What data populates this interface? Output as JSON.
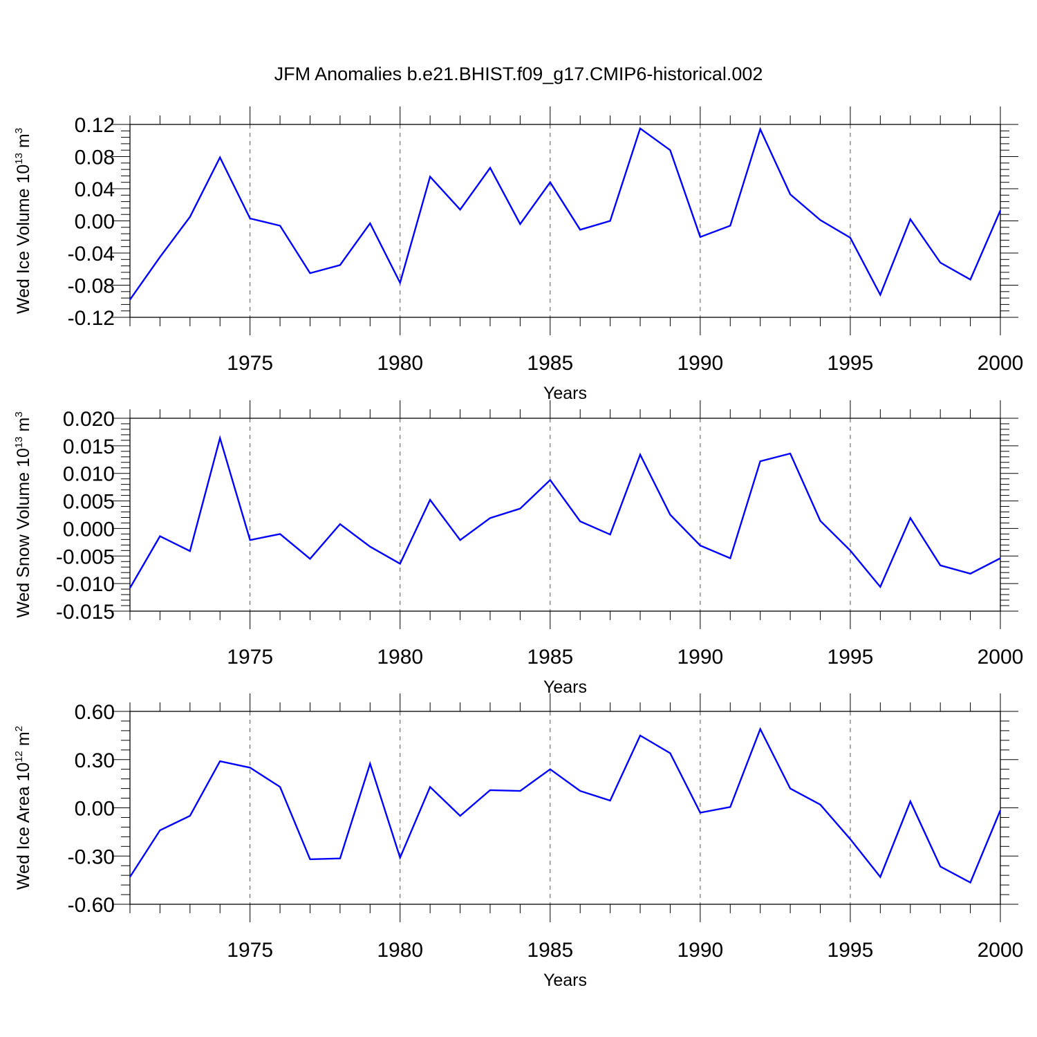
{
  "title": "JFM Anomalies b.e21.BHIST.f09_g17.CMIP6-historical.002",
  "chart_data": [
    {
      "type": "line",
      "title": "",
      "ylabel": "Wed Ice Volume 10",
      "ylabel_exp": "13",
      "ylabel_unit": "m",
      "ylabel_unit_exp": "3",
      "xlabel": "Years",
      "xlim": [
        1971,
        2000
      ],
      "ylim": [
        -0.12,
        0.12
      ],
      "xticks": [
        1975,
        1980,
        1985,
        1990,
        1995,
        2000
      ],
      "xtick_labels": [
        "1975",
        "1980",
        "1985",
        "1990",
        "1995",
        "2000"
      ],
      "yticks": [
        -0.12,
        -0.08,
        -0.04,
        0.0,
        0.04,
        0.08,
        0.12
      ],
      "ytick_labels": [
        "-0.12",
        "-0.08",
        "-0.04",
        "0.00",
        "0.04",
        "0.08",
        "0.12"
      ],
      "grid": "vertical dashed at major x ticks",
      "color": "#0000ff",
      "x": [
        1971,
        1972,
        1973,
        1974,
        1975,
        1976,
        1977,
        1978,
        1979,
        1980,
        1981,
        1982,
        1983,
        1984,
        1985,
        1986,
        1987,
        1988,
        1989,
        1990,
        1991,
        1992,
        1993,
        1994,
        1995,
        1996,
        1997,
        1998,
        1999,
        2000
      ],
      "y": [
        -0.098,
        -0.045,
        0.005,
        0.079,
        0.003,
        -0.006,
        -0.065,
        -0.055,
        -0.003,
        -0.077,
        0.055,
        0.014,
        0.066,
        -0.004,
        0.048,
        -0.011,
        0.0,
        0.115,
        0.088,
        -0.02,
        -0.006,
        0.114,
        0.033,
        0.001,
        -0.021,
        -0.092,
        0.002,
        -0.052,
        -0.073,
        0.013
      ]
    },
    {
      "type": "line",
      "title": "",
      "ylabel": "Wed Snow Volume 10",
      "ylabel_exp": "13",
      "ylabel_unit": "m",
      "ylabel_unit_exp": "3",
      "xlabel": "Years",
      "xlim": [
        1971,
        2000
      ],
      "ylim": [
        -0.015,
        0.02
      ],
      "xticks": [
        1975,
        1980,
        1985,
        1990,
        1995,
        2000
      ],
      "xtick_labels": [
        "1975",
        "1980",
        "1985",
        "1990",
        "1995",
        "2000"
      ],
      "yticks": [
        -0.015,
        -0.01,
        -0.005,
        0.0,
        0.005,
        0.01,
        0.015,
        0.02
      ],
      "ytick_labels": [
        "-0.015",
        "-0.010",
        "-0.005",
        "0.000",
        "0.005",
        "0.010",
        "0.015",
        "0.020"
      ],
      "grid": "vertical dashed at major x ticks",
      "color": "#0000ff",
      "x": [
        1971,
        1972,
        1973,
        1974,
        1975,
        1976,
        1977,
        1978,
        1979,
        1980,
        1981,
        1982,
        1983,
        1984,
        1985,
        1986,
        1987,
        1988,
        1989,
        1990,
        1991,
        1992,
        1993,
        1994,
        1995,
        1996,
        1997,
        1998,
        1999,
        2000
      ],
      "y": [
        -0.0108,
        -0.0014,
        -0.0041,
        0.0164,
        -0.0021,
        -0.001,
        -0.0055,
        0.0008,
        -0.0033,
        -0.0064,
        0.0052,
        -0.0021,
        0.0019,
        0.0036,
        0.0088,
        0.0013,
        -0.0011,
        0.0134,
        0.0025,
        -0.0031,
        -0.0054,
        0.0122,
        0.0136,
        0.0014,
        -0.004,
        -0.0106,
        0.0019,
        -0.0067,
        -0.0082,
        -0.0054
      ]
    },
    {
      "type": "line",
      "title": "",
      "ylabel": "Wed Ice Area 10",
      "ylabel_exp": "12",
      "ylabel_unit": "m",
      "ylabel_unit_exp": "2",
      "xlabel": "Years",
      "xlim": [
        1971,
        2000
      ],
      "ylim": [
        -0.6,
        0.6
      ],
      "xticks": [
        1975,
        1980,
        1985,
        1990,
        1995,
        2000
      ],
      "xtick_labels": [
        "1975",
        "1980",
        "1985",
        "1990",
        "1995",
        "2000"
      ],
      "yticks": [
        -0.6,
        -0.3,
        0.0,
        0.3,
        0.6
      ],
      "ytick_labels": [
        "-0.60",
        "-0.30",
        "0.00",
        "0.30",
        "0.60"
      ],
      "grid": "vertical dashed at major x ticks",
      "color": "#0000ff",
      "x": [
        1971,
        1972,
        1973,
        1974,
        1975,
        1976,
        1977,
        1978,
        1979,
        1980,
        1981,
        1982,
        1983,
        1984,
        1985,
        1986,
        1987,
        1988,
        1989,
        1990,
        1991,
        1992,
        1993,
        1994,
        1995,
        1996,
        1997,
        1998,
        1999,
        2000
      ],
      "y": [
        -0.43,
        -0.14,
        -0.05,
        0.29,
        0.25,
        0.13,
        -0.32,
        -0.315,
        0.275,
        -0.31,
        0.13,
        -0.05,
        0.11,
        0.105,
        0.24,
        0.105,
        0.045,
        0.45,
        0.34,
        -0.03,
        0.005,
        0.49,
        0.12,
        0.02,
        -0.195,
        -0.43,
        0.04,
        -0.365,
        -0.465,
        -0.015
      ]
    }
  ]
}
